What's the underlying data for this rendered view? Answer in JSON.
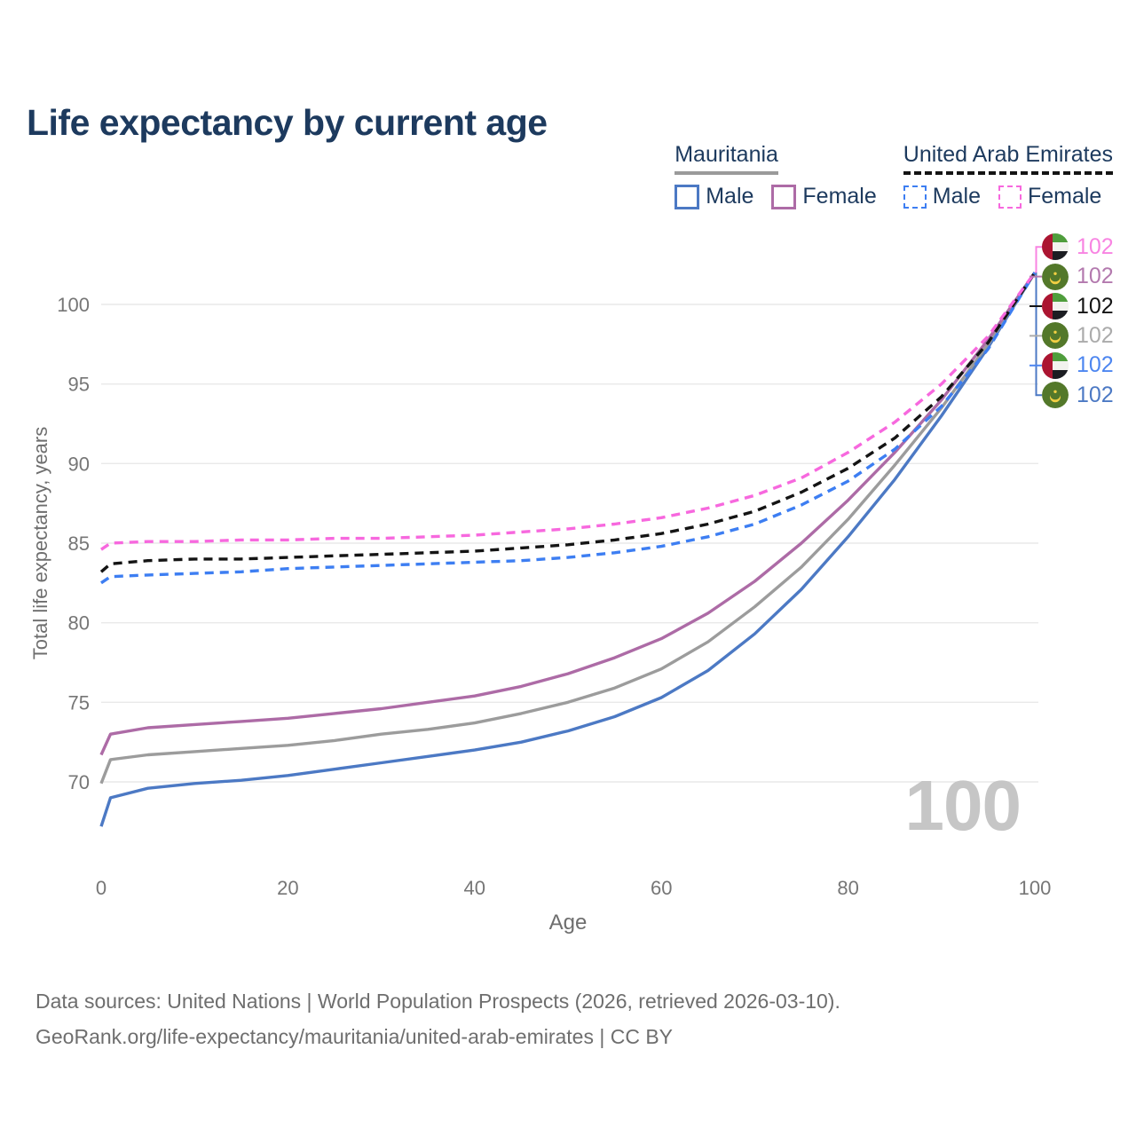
{
  "title": "Life expectancy by current age",
  "legend": {
    "groups": [
      {
        "label": "Mauritania",
        "line_style": "solid",
        "underline_color": "#9a9a9a",
        "items": [
          {
            "label": "Male",
            "color": "#4c79c4",
            "dashed": false
          },
          {
            "label": "Female",
            "color": "#ad6ba6",
            "dashed": false
          }
        ]
      },
      {
        "label": "United Arab Emirates",
        "line_style": "dashed",
        "underline_color": "#141414",
        "items": [
          {
            "label": "Male",
            "color": "#3d7ef2",
            "dashed": true
          },
          {
            "label": "Female",
            "color": "#f768de",
            "dashed": true
          }
        ]
      }
    ]
  },
  "chart_data": {
    "type": "line",
    "title": "Life expectancy by current age",
    "xlabel": "Age",
    "ylabel": "Total life expectancy, years",
    "xlim": [
      0,
      100
    ],
    "ylim": [
      66,
      104
    ],
    "xticks": [
      0,
      20,
      40,
      60,
      80,
      100
    ],
    "yticks": [
      70,
      75,
      80,
      85,
      90,
      95,
      100
    ],
    "grid": true,
    "legend_position": "top-right",
    "x": [
      0,
      1,
      5,
      10,
      15,
      20,
      25,
      30,
      35,
      40,
      45,
      50,
      55,
      60,
      65,
      70,
      75,
      80,
      85,
      90,
      95,
      100
    ],
    "series": [
      {
        "name": "Mauritania Male",
        "color": "#4c79c4",
        "dash": false,
        "values": [
          67.2,
          69.0,
          69.6,
          69.9,
          70.1,
          70.4,
          70.8,
          71.2,
          71.6,
          72.0,
          72.5,
          73.2,
          74.1,
          75.3,
          77.0,
          79.3,
          82.1,
          85.4,
          89.0,
          93.0,
          97.3,
          102.0
        ]
      },
      {
        "name": "Mauritania Both sexes",
        "color": "#9c9c9c",
        "dash": false,
        "values": [
          69.9,
          71.4,
          71.7,
          71.9,
          72.1,
          72.3,
          72.6,
          73.0,
          73.3,
          73.7,
          74.3,
          75.0,
          75.9,
          77.1,
          78.8,
          81.0,
          83.5,
          86.5,
          89.9,
          93.5,
          97.5,
          102.0
        ]
      },
      {
        "name": "Mauritania Female",
        "color": "#ad6ba6",
        "dash": false,
        "values": [
          71.7,
          73.0,
          73.4,
          73.6,
          73.8,
          74.0,
          74.3,
          74.6,
          75.0,
          75.4,
          76.0,
          76.8,
          77.8,
          79.0,
          80.6,
          82.6,
          85.0,
          87.7,
          90.7,
          94.0,
          97.8,
          102.0
        ]
      },
      {
        "name": "United Arab Emirates Male",
        "color": "#3d7ef2",
        "dash": true,
        "values": [
          82.5,
          82.9,
          83.0,
          83.1,
          83.2,
          83.4,
          83.5,
          83.6,
          83.7,
          83.8,
          83.9,
          84.1,
          84.4,
          84.8,
          85.4,
          86.2,
          87.4,
          88.9,
          90.9,
          93.6,
          97.2,
          102.0
        ]
      },
      {
        "name": "United Arab Emirates Both sexes",
        "color": "#141414",
        "dash": true,
        "values": [
          83.2,
          83.7,
          83.9,
          84.0,
          84.0,
          84.1,
          84.2,
          84.3,
          84.4,
          84.5,
          84.7,
          84.9,
          85.2,
          85.6,
          86.2,
          87.0,
          88.2,
          89.7,
          91.6,
          94.2,
          97.6,
          102.0
        ]
      },
      {
        "name": "United Arab Emirates Female",
        "color": "#f768de",
        "dash": true,
        "values": [
          84.6,
          85.0,
          85.1,
          85.1,
          85.2,
          85.2,
          85.3,
          85.3,
          85.4,
          85.5,
          85.7,
          85.9,
          86.2,
          86.6,
          87.2,
          88.0,
          89.1,
          90.7,
          92.6,
          95.0,
          98.0,
          102.0
        ]
      }
    ]
  },
  "end_labels": [
    {
      "flag": "united-arab-emirates",
      "value": "102",
      "color": "#f884e2"
    },
    {
      "flag": "mauritania",
      "value": "102",
      "color": "#b379ae"
    },
    {
      "flag": "united-arab-emirates",
      "value": "102",
      "color": "#141414"
    },
    {
      "flag": "mauritania",
      "value": "102",
      "color": "#ababab"
    },
    {
      "flag": "united-arab-emirates",
      "value": "102",
      "color": "#4d86f0"
    },
    {
      "flag": "mauritania",
      "value": "102",
      "color": "#4c79c4"
    }
  ],
  "hovered_age": "100",
  "footer": {
    "line1": "Data sources: United Nations | World Population Prospects (2026, retrieved 2026-03-10).",
    "line2": "GeoRank.org/life-expectancy/mauritania/united-arab-emirates | CC BY"
  },
  "colors": {
    "title": "#1d3a5e",
    "axis_text": "#767676",
    "gridline": "#e9e9e9",
    "watermark": "#c6c6c6",
    "footer_text": "#6e6e6e"
  }
}
